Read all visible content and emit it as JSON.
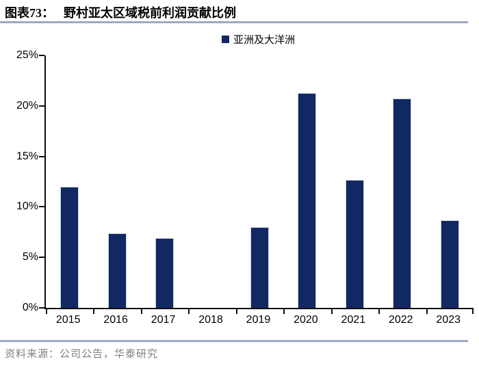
{
  "header": {
    "title_prefix": "图表73：",
    "title": "野村亚太区域税前利润贡献比例"
  },
  "legend": {
    "label": "亚洲及大洋洲"
  },
  "chart_data": {
    "type": "bar",
    "title": "野村亚太区域税前利润贡献比例",
    "series_name": "亚洲及大洋洲",
    "categories": [
      "2015",
      "2016",
      "2017",
      "2018",
      "2019",
      "2020",
      "2021",
      "2022",
      "2023"
    ],
    "values": [
      12.0,
      7.4,
      6.9,
      0,
      8.0,
      21.3,
      12.7,
      20.7,
      8.7
    ],
    "unit": "%",
    "xlabel": "",
    "ylabel": "",
    "ylim": [
      0,
      25
    ],
    "yticks": [
      "0%",
      "5%",
      "10%",
      "15%",
      "20%",
      "25%"
    ],
    "grid": false,
    "legend_position": "top-center",
    "note": "no bar shown for 2018"
  },
  "footer": {
    "source": "资料来源：公司公告，华泰研究"
  },
  "colors": {
    "bar": "#112862",
    "divider": "#9AAAC4",
    "axis": "#0D0D0D",
    "footer_text": "#7F7F7F",
    "title_text": "#000000"
  }
}
